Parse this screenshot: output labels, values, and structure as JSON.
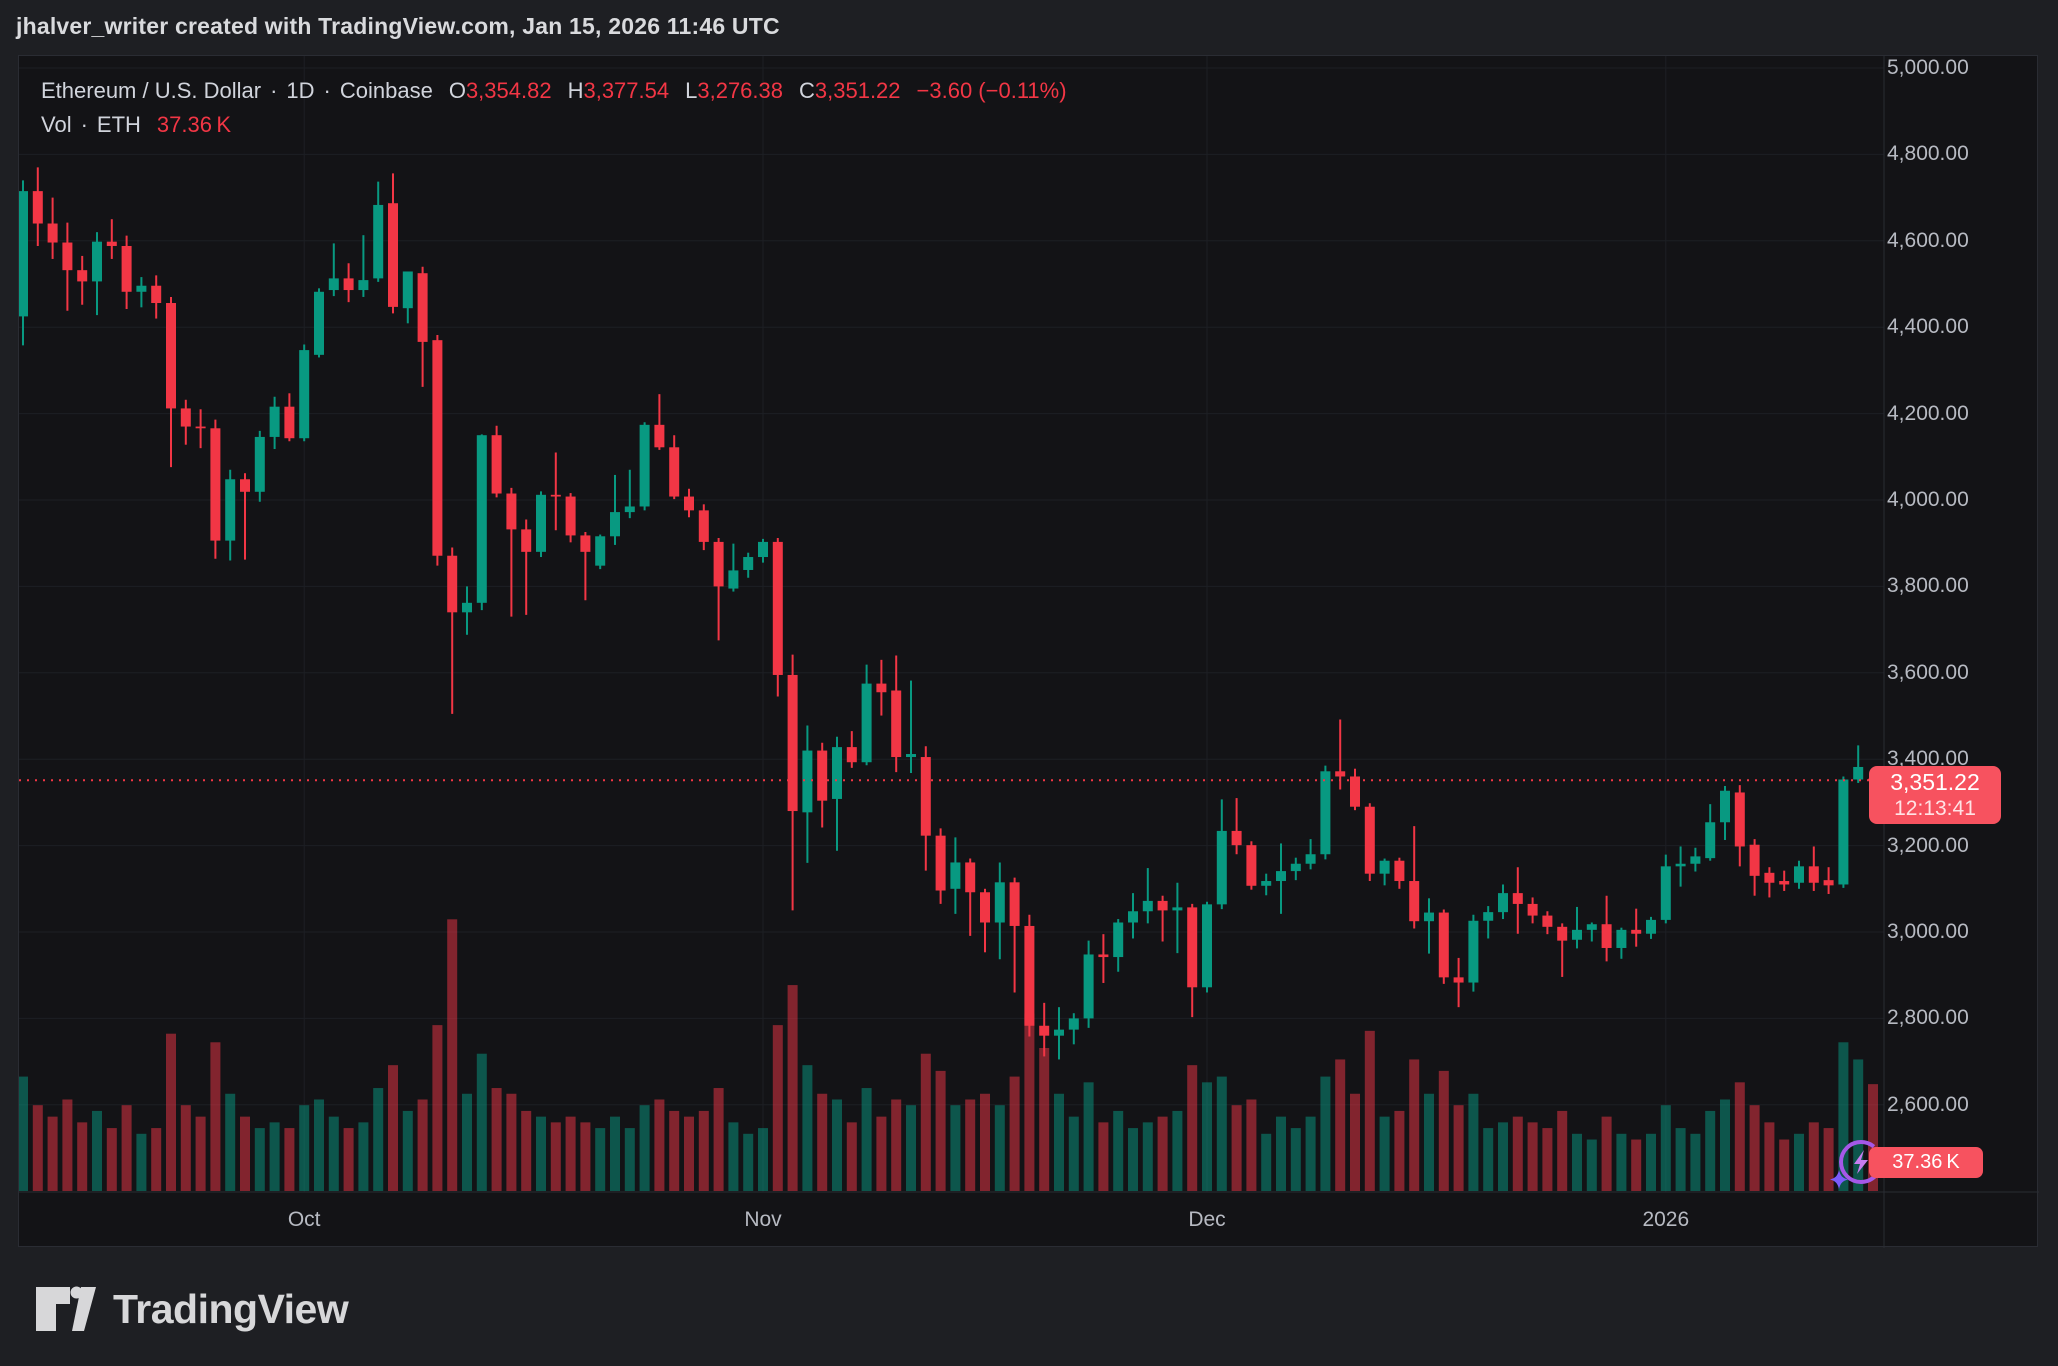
{
  "header": {
    "title": "jhalver_writer created with TradingView.com, Jan 15, 2026 11:46 UTC"
  },
  "legend": {
    "symbol": "Ethereum / U.S. Dollar",
    "dot": "·",
    "interval": "1D",
    "exchange": "Coinbase",
    "o_label": "O",
    "o_value": "3,354.82",
    "h_label": "H",
    "h_value": "3,377.54",
    "l_label": "L",
    "l_value": "3,276.38",
    "c_label": "C",
    "c_value": "3,351.22",
    "change": "−3.60 (−0.11%)",
    "vol_label": "Vol",
    "vol_asset": "ETH",
    "vol_value": "37.36 K"
  },
  "price_badge": {
    "price": "3,351.22",
    "countdown": "12:13:41"
  },
  "volume_badge": {
    "value": "37.36 K"
  },
  "logo": {
    "text": "TradingView"
  },
  "colors": {
    "page_bg": "#1e1f23",
    "pane_bg": "#131316",
    "grid": "#1d1f24",
    "border": "#2a2c33",
    "up": "#089981",
    "down": "#f23645",
    "badge_bg": "#f7525f",
    "axis_text": "#b7bac2",
    "legend_text": "#d1d4dc",
    "value_red": "#f23645",
    "boost_purple": "#a558e8",
    "spark_purple": "#7c5cfc"
  },
  "chart_data": {
    "type": "candlestick",
    "title": "Ethereum / U.S. Dollar",
    "symbol": "ETHUSD",
    "interval": "1D",
    "exchange": "Coinbase",
    "last": {
      "open": 3354.82,
      "high": 3377.54,
      "low": 3276.38,
      "close": 3351.22,
      "change": -3.6,
      "change_pct": -0.11,
      "volume_k": 37.36,
      "countdown": "12:13:41"
    },
    "current_price_line": 3351.22,
    "grid": true,
    "legend_position": "top-left",
    "y_axis": {
      "side": "right",
      "min_visible": 2550,
      "max_visible": 5030,
      "tick_step": 200,
      "ticks": [
        5000,
        4800,
        4600,
        4400,
        4200,
        4000,
        3800,
        3600,
        3400,
        3200,
        3000,
        2800,
        2600
      ],
      "tick_labels": [
        "5,000.00",
        "4,800.00",
        "4,600.00",
        "4,400.00",
        "4,200.00",
        "4,000.00",
        "3,800.00",
        "3,600.00",
        "3,400.00",
        "3,200.00",
        "3,000.00",
        "2,800.00",
        "2,600.00"
      ]
    },
    "x_axis": {
      "labels": [
        {
          "text": "Oct",
          "index": 19
        },
        {
          "text": "Nov",
          "index": 50
        },
        {
          "text": "Dec",
          "index": 80
        },
        {
          "text": "2026",
          "index": 111
        }
      ]
    },
    "volume_pane": {
      "unit": "K ETH",
      "max_scale": 95
    },
    "columns": [
      "date",
      "open",
      "high",
      "low",
      "close",
      "volume_k"
    ],
    "candles": [
      [
        "2025-09-12",
        4425,
        4740,
        4358,
        4715,
        40
      ],
      [
        "2025-09-13",
        4715,
        4770,
        4588,
        4640,
        30
      ],
      [
        "2025-09-14",
        4640,
        4700,
        4558,
        4596,
        26
      ],
      [
        "2025-09-15",
        4596,
        4642,
        4438,
        4532,
        32
      ],
      [
        "2025-09-16",
        4532,
        4565,
        4452,
        4506,
        24
      ],
      [
        "2025-09-17",
        4506,
        4620,
        4428,
        4598,
        28
      ],
      [
        "2025-09-18",
        4598,
        4650,
        4558,
        4588,
        22
      ],
      [
        "2025-09-19",
        4588,
        4612,
        4442,
        4482,
        30
      ],
      [
        "2025-09-20",
        4482,
        4516,
        4446,
        4496,
        20
      ],
      [
        "2025-09-21",
        4496,
        4520,
        4420,
        4456,
        22
      ],
      [
        "2025-09-22",
        4456,
        4470,
        4076,
        4212,
        55
      ],
      [
        "2025-09-23",
        4212,
        4232,
        4128,
        4170,
        30
      ],
      [
        "2025-09-24",
        4170,
        4210,
        4120,
        4166,
        26
      ],
      [
        "2025-09-25",
        4166,
        4186,
        3864,
        3906,
        52
      ],
      [
        "2025-09-26",
        3906,
        4070,
        3860,
        4048,
        34
      ],
      [
        "2025-09-27",
        4048,
        4062,
        3862,
        4019,
        26
      ],
      [
        "2025-09-28",
        4019,
        4160,
        3996,
        4146,
        22
      ],
      [
        "2025-09-29",
        4146,
        4239,
        4118,
        4216,
        24
      ],
      [
        "2025-09-30",
        4216,
        4247,
        4136,
        4143,
        22
      ],
      [
        "2025-10-01",
        4143,
        4360,
        4136,
        4347,
        30
      ],
      [
        "2025-10-02",
        4336,
        4490,
        4330,
        4482,
        32
      ],
      [
        "2025-10-03",
        4486,
        4594,
        4472,
        4513,
        26
      ],
      [
        "2025-10-04",
        4513,
        4548,
        4458,
        4486,
        22
      ],
      [
        "2025-10-05",
        4486,
        4613,
        4470,
        4509,
        24
      ],
      [
        "2025-10-06",
        4513,
        4737,
        4505,
        4683,
        36
      ],
      [
        "2025-10-07",
        4687,
        4756,
        4432,
        4447,
        44
      ],
      [
        "2025-10-08",
        4444,
        4520,
        4409,
        4529,
        28
      ],
      [
        "2025-10-09",
        4525,
        4540,
        4262,
        4366,
        32
      ],
      [
        "2025-10-10",
        4370,
        4382,
        3848,
        3871,
        58
      ],
      [
        "2025-10-11",
        3871,
        3890,
        3505,
        3740,
        95
      ],
      [
        "2025-10-12",
        3740,
        3800,
        3688,
        3762,
        34
      ],
      [
        "2025-10-13",
        3762,
        4152,
        3745,
        4150,
        48
      ],
      [
        "2025-10-14",
        4150,
        4172,
        4006,
        4015,
        36
      ],
      [
        "2025-10-15",
        4015,
        4028,
        3730,
        3932,
        34
      ],
      [
        "2025-10-16",
        3932,
        3955,
        3734,
        3880,
        28
      ],
      [
        "2025-10-17",
        3880,
        4020,
        3868,
        4012,
        26
      ],
      [
        "2025-10-18",
        4012,
        4110,
        3930,
        4008,
        24
      ],
      [
        "2025-10-19",
        4008,
        4016,
        3902,
        3918,
        26
      ],
      [
        "2025-10-20",
        3918,
        3926,
        3768,
        3880,
        24
      ],
      [
        "2025-10-21",
        3848,
        3920,
        3840,
        3916,
        22
      ],
      [
        "2025-10-22",
        3916,
        4058,
        3896,
        3972,
        26
      ],
      [
        "2025-10-23",
        3972,
        4070,
        3958,
        3985,
        22
      ],
      [
        "2025-10-24",
        3985,
        4180,
        3976,
        4174,
        30
      ],
      [
        "2025-10-25",
        4174,
        4245,
        4116,
        4122,
        32
      ],
      [
        "2025-10-26",
        4122,
        4150,
        4002,
        4008,
        28
      ],
      [
        "2025-10-27",
        4008,
        4026,
        3960,
        3976,
        26
      ],
      [
        "2025-10-28",
        3976,
        3990,
        3884,
        3903,
        28
      ],
      [
        "2025-10-29",
        3903,
        3912,
        3675,
        3800,
        36
      ],
      [
        "2025-10-30",
        3795,
        3899,
        3788,
        3837,
        24
      ],
      [
        "2025-10-31",
        3838,
        3878,
        3820,
        3868,
        20
      ],
      [
        "2025-11-01",
        3868,
        3910,
        3855,
        3903,
        22
      ],
      [
        "2025-11-02",
        3903,
        3912,
        3545,
        3595,
        58
      ],
      [
        "2025-11-03",
        3595,
        3642,
        3050,
        3280,
        72
      ],
      [
        "2025-11-04",
        3277,
        3478,
        3160,
        3420,
        44
      ],
      [
        "2025-11-05",
        3420,
        3438,
        3242,
        3304,
        34
      ],
      [
        "2025-11-06",
        3308,
        3452,
        3188,
        3428,
        32
      ],
      [
        "2025-11-07",
        3428,
        3465,
        3380,
        3393,
        24
      ],
      [
        "2025-11-08",
        3393,
        3619,
        3386,
        3575,
        36
      ],
      [
        "2025-11-09",
        3575,
        3630,
        3501,
        3555,
        26
      ],
      [
        "2025-11-10",
        3559,
        3640,
        3370,
        3405,
        32
      ],
      [
        "2025-11-11",
        3405,
        3582,
        3368,
        3412,
        30
      ],
      [
        "2025-11-12",
        3405,
        3430,
        3142,
        3223,
        48
      ],
      [
        "2025-11-13",
        3223,
        3240,
        3065,
        3096,
        42
      ],
      [
        "2025-11-14",
        3100,
        3219,
        3042,
        3161,
        30
      ],
      [
        "2025-11-15",
        3161,
        3170,
        2991,
        3092,
        32
      ],
      [
        "2025-11-16",
        3092,
        3100,
        2953,
        3022,
        34
      ],
      [
        "2025-11-17",
        3022,
        3161,
        2937,
        3115,
        30
      ],
      [
        "2025-11-18",
        3115,
        3126,
        2860,
        3014,
        40
      ],
      [
        "2025-11-19",
        3014,
        3040,
        2758,
        2783,
        62
      ],
      [
        "2025-11-20",
        2783,
        2836,
        2712,
        2760,
        50
      ],
      [
        "2025-11-21",
        2760,
        2826,
        2705,
        2774,
        34
      ],
      [
        "2025-11-22",
        2774,
        2812,
        2740,
        2800,
        26
      ],
      [
        "2025-11-23",
        2800,
        2980,
        2778,
        2948,
        38
      ],
      [
        "2025-11-24",
        2948,
        2995,
        2882,
        2942,
        24
      ],
      [
        "2025-11-25",
        2942,
        3030,
        2908,
        3022,
        28
      ],
      [
        "2025-11-26",
        3022,
        3090,
        2985,
        3048,
        22
      ],
      [
        "2025-11-27",
        3048,
        3148,
        3020,
        3072,
        24
      ],
      [
        "2025-11-28",
        3072,
        3084,
        2978,
        3050,
        26
      ],
      [
        "2025-11-29",
        3050,
        3114,
        2951,
        3057,
        28
      ],
      [
        "2025-11-30",
        3057,
        3065,
        2803,
        2872,
        44
      ],
      [
        "2025-12-01",
        2872,
        3070,
        2860,
        3064,
        38
      ],
      [
        "2025-12-02",
        3064,
        3307,
        3053,
        3234,
        40
      ],
      [
        "2025-12-03",
        3234,
        3310,
        3180,
        3201,
        30
      ],
      [
        "2025-12-04",
        3201,
        3210,
        3098,
        3107,
        32
      ],
      [
        "2025-12-05",
        3107,
        3135,
        3085,
        3118,
        20
      ],
      [
        "2025-12-06",
        3118,
        3205,
        3042,
        3141,
        26
      ],
      [
        "2025-12-07",
        3141,
        3172,
        3120,
        3158,
        22
      ],
      [
        "2025-12-08",
        3158,
        3215,
        3145,
        3180,
        26
      ],
      [
        "2025-12-09",
        3180,
        3385,
        3168,
        3372,
        40
      ],
      [
        "2025-12-10",
        3372,
        3492,
        3330,
        3360,
        46
      ],
      [
        "2025-12-11",
        3360,
        3378,
        3282,
        3290,
        34
      ],
      [
        "2025-12-12",
        3290,
        3298,
        3118,
        3135,
        56
      ],
      [
        "2025-12-13",
        3135,
        3170,
        3108,
        3165,
        26
      ],
      [
        "2025-12-14",
        3165,
        3172,
        3100,
        3118,
        28
      ],
      [
        "2025-12-15",
        3118,
        3245,
        3008,
        3025,
        46
      ],
      [
        "2025-12-16",
        3025,
        3078,
        2950,
        3045,
        34
      ],
      [
        "2025-12-17",
        3045,
        3052,
        2880,
        2895,
        42
      ],
      [
        "2025-12-18",
        2895,
        2940,
        2826,
        2883,
        30
      ],
      [
        "2025-12-19",
        2883,
        3040,
        2862,
        3026,
        34
      ],
      [
        "2025-12-20",
        3026,
        3060,
        2985,
        3046,
        22
      ],
      [
        "2025-12-21",
        3046,
        3110,
        3030,
        3090,
        24
      ],
      [
        "2025-12-22",
        3090,
        3150,
        2996,
        3065,
        26
      ],
      [
        "2025-12-23",
        3065,
        3080,
        3020,
        3038,
        24
      ],
      [
        "2025-12-24",
        3038,
        3048,
        2995,
        3012,
        22
      ],
      [
        "2025-12-25",
        3012,
        3020,
        2896,
        2980,
        28
      ],
      [
        "2025-12-26",
        2982,
        3058,
        2962,
        3005,
        20
      ],
      [
        "2025-12-27",
        3005,
        3022,
        2978,
        3018,
        18
      ],
      [
        "2025-12-28",
        3018,
        3084,
        2932,
        2963,
        26
      ],
      [
        "2025-12-29",
        2963,
        3010,
        2938,
        3005,
        20
      ],
      [
        "2025-12-30",
        3005,
        3054,
        2966,
        2996,
        18
      ],
      [
        "2025-12-31",
        2996,
        3035,
        2984,
        3028,
        20
      ],
      [
        "2026-01-01",
        3028,
        3179,
        3020,
        3152,
        30
      ],
      [
        "2026-01-02",
        3152,
        3198,
        3105,
        3158,
        22
      ],
      [
        "2026-01-03",
        3158,
        3195,
        3140,
        3175,
        20
      ],
      [
        "2026-01-04",
        3171,
        3296,
        3165,
        3254,
        28
      ],
      [
        "2026-01-05",
        3254,
        3338,
        3213,
        3327,
        32
      ],
      [
        "2026-01-06",
        3323,
        3340,
        3152,
        3198,
        38
      ],
      [
        "2026-01-07",
        3202,
        3215,
        3084,
        3130,
        30
      ],
      [
        "2026-01-08",
        3137,
        3150,
        3080,
        3114,
        24
      ],
      [
        "2026-01-09",
        3118,
        3142,
        3095,
        3110,
        18
      ],
      [
        "2026-01-10",
        3114,
        3165,
        3100,
        3152,
        20
      ],
      [
        "2026-01-11",
        3152,
        3198,
        3095,
        3114,
        24
      ],
      [
        "2026-01-12",
        3120,
        3150,
        3088,
        3108,
        22
      ],
      [
        "2026-01-13",
        3110,
        3360,
        3102,
        3353,
        52
      ],
      [
        "2026-01-14",
        3353,
        3432,
        3345,
        3382,
        46
      ],
      [
        "2026-01-15",
        3354.82,
        3377.54,
        3276.38,
        3351.22,
        37.36
      ]
    ]
  }
}
